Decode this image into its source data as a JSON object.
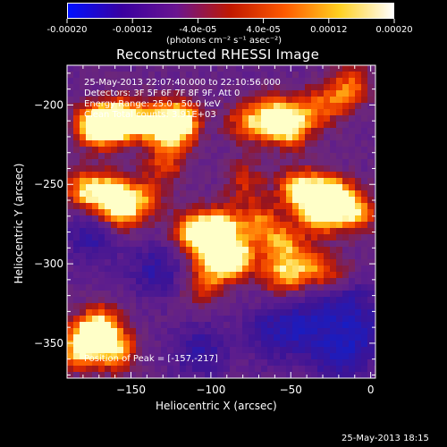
{
  "colorbar": {
    "tick_labels": [
      "-0.00020",
      "-0.00012",
      "-4.0e-05",
      "4.0e-05",
      "0.00012",
      "0.00020"
    ],
    "unit_label": "(photons cm⁻² s⁻¹ asec⁻²)",
    "range": [
      -0.0002,
      0.0002
    ],
    "colors": [
      "#0010ff",
      "#3a00a0",
      "#6a1590",
      "#c01800",
      "#ff5a00",
      "#ffd020",
      "#ffffff"
    ]
  },
  "title": "Reconstructed RHESSI Image",
  "annotations": {
    "time_range": "25-May-2013 22:07:40.000 to 22:10:56.000",
    "detectors": "Detectors: 3F 5F 6F 7F 8F 9F, Att 0",
    "energy_range": "Energy Range: 25.0 - 50.0 keV",
    "clean_counts": "Clean     Total counts: 3.91E+03",
    "peak_position": "Position of Peak = [-157,-217]"
  },
  "axes": {
    "xlabel": "Heliocentric X (arcsec)",
    "ylabel": "Heliocentric Y (arcsec)",
    "xlim": [
      -190,
      3
    ],
    "ylim": [
      -372,
      -175
    ],
    "x_ticks": [
      -150,
      -100,
      -50,
      0
    ],
    "x_tick_labels": [
      "−150",
      "−100",
      "−50",
      "0"
    ],
    "y_ticks": [
      -200,
      -250,
      -300,
      -350
    ],
    "y_tick_labels": [
      "−200",
      "−250",
      "−300",
      "−350"
    ]
  },
  "footer_timestamp": "25-May-2013 18:15"
}
